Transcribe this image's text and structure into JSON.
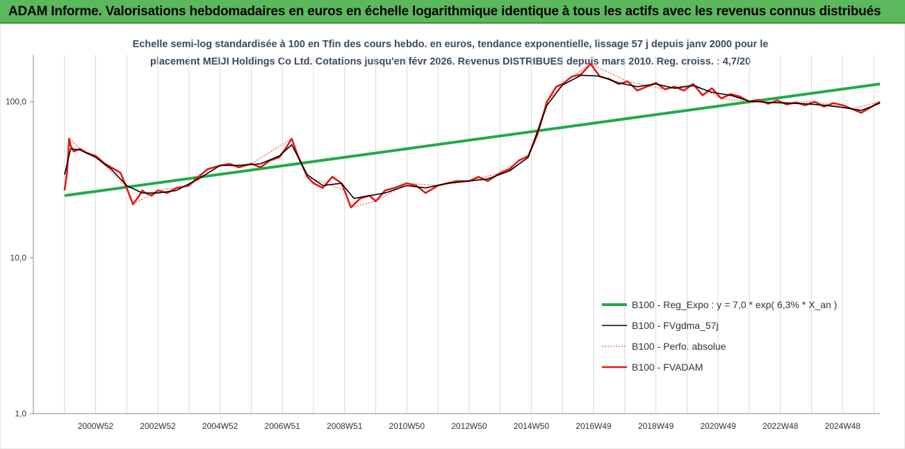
{
  "header": {
    "title": "ADAM Informe. Valorisations hebdomadaires en euros en échelle logarithmique identique à tous les actifs avec les revenus connus distribués"
  },
  "colors": {
    "header_bg": "#5cb85c",
    "reg": "#1faa4a",
    "fvgdma": "#000000",
    "perfo": "#e0301e",
    "fvadam": "#e8150f",
    "grid": "#d9d9d9"
  },
  "chart_data": {
    "type": "line",
    "subtitle_line1": "Echelle semi-log standardisée à 100 en Tfin des cours hebdo. en euros, tendance exponentielle, lissage 57 j depuis janv 2000 pour le",
    "subtitle_line2": "placement MEIJI Holdings Co Ltd. Cotations jusqu'en févr 2026.  Revenus DISTRIBUES depuis mars 2010. Reg. croiss. : 4,7/20",
    "y_scale": "log",
    "ylim": [
      1,
      200
    ],
    "y_ticks": [
      1,
      10,
      100
    ],
    "y_tick_labels": [
      "1,0",
      "10,0",
      "100,0"
    ],
    "xlim": [
      1999.0,
      2026.2
    ],
    "x_tick_labels": [
      "2000W52",
      "2002W52",
      "2004W52",
      "2006W51",
      "2008W51",
      "2010W50",
      "2012W50",
      "2014W50",
      "2016W49",
      "2018W49",
      "2020W49",
      "2022W48",
      "2024W48"
    ],
    "x_tick_years": [
      2001,
      2003,
      2005,
      2007,
      2009,
      2011,
      2013,
      2015,
      2017,
      2019,
      2021,
      2023,
      2025
    ],
    "grid": true,
    "legend_position": "bottom-right",
    "legend": [
      {
        "name": "B100 - Reg_Expo : y = 7,0 * exp( 6,3% *  X_an )",
        "key": "reg",
        "style": "solid-thick"
      },
      {
        "name": "B100 - FVgdma_57j",
        "key": "fvgdma",
        "style": "solid"
      },
      {
        "name": "B100 - Perfo. absolue",
        "key": "perfo",
        "style": "dotted"
      },
      {
        "name": "B100 - FVADAM",
        "key": "fvadam",
        "style": "solid-thick"
      }
    ],
    "series": [
      {
        "name": "B100 - Reg_Expo : y = 7,0 * exp( 6,3% *  X_an )",
        "key": "reg",
        "x": [
          2000.0,
          2026.2
        ],
        "y": [
          25,
          130
        ]
      },
      {
        "name": "B100 - FVADAM",
        "key": "fvadam",
        "x": [
          2000.0,
          2000.08,
          2000.15,
          2000.2,
          2000.3,
          2000.5,
          2000.7,
          2001.0,
          2001.3,
          2001.5,
          2001.8,
          2002.0,
          2002.2,
          2002.4,
          2002.5,
          2002.6,
          2002.8,
          2003.0,
          2003.3,
          2003.6,
          2004.0,
          2004.3,
          2004.6,
          2005.0,
          2005.3,
          2005.6,
          2006.0,
          2006.3,
          2006.6,
          2006.9,
          2007.1,
          2007.3,
          2007.5,
          2007.8,
          2008.0,
          2008.3,
          2008.6,
          2008.9,
          2009.0,
          2009.2,
          2009.5,
          2009.8,
          2010.0,
          2010.3,
          2010.6,
          2011.0,
          2011.3,
          2011.6,
          2012.0,
          2012.3,
          2012.6,
          2013.0,
          2013.3,
          2013.6,
          2014.0,
          2014.3,
          2014.6,
          2014.9,
          2015.2,
          2015.5,
          2015.8,
          2016.0,
          2016.3,
          2016.6,
          2016.9,
          2017.2,
          2017.5,
          2017.8,
          2018.1,
          2018.4,
          2018.7,
          2019.0,
          2019.3,
          2019.6,
          2019.9,
          2020.2,
          2020.5,
          2020.8,
          2021.1,
          2021.4,
          2021.7,
          2022.0,
          2022.3,
          2022.6,
          2022.9,
          2023.2,
          2023.5,
          2023.8,
          2024.1,
          2024.4,
          2024.7,
          2025.0,
          2025.3,
          2025.6,
          2025.9,
          2026.2
        ],
        "y": [
          27,
          35,
          58,
          52,
          48,
          50,
          47,
          45,
          40,
          38,
          35,
          28,
          22,
          25,
          27,
          26,
          25,
          27,
          26,
          28,
          29,
          33,
          37,
          39,
          40,
          38,
          40,
          38,
          42,
          44,
          50,
          58,
          45,
          33,
          30,
          28,
          33,
          30,
          27,
          21,
          24,
          25,
          23,
          27,
          28,
          30,
          29,
          26,
          29,
          30,
          31,
          31,
          33,
          31,
          35,
          37,
          42,
          45,
          62,
          100,
          125,
          130,
          145,
          150,
          175,
          145,
          140,
          130,
          135,
          118,
          125,
          132,
          120,
          125,
          118,
          130,
          110,
          122,
          105,
          112,
          108,
          100,
          103,
          97,
          102,
          96,
          99,
          95,
          100,
          93,
          98,
          95,
          90,
          85,
          92,
          100
        ]
      },
      {
        "name": "B100 - FVgdma_57j",
        "key": "fvgdma",
        "x": [
          2000.0,
          2000.2,
          2000.5,
          2001.0,
          2001.5,
          2002.0,
          2002.5,
          2003.0,
          2003.6,
          2004.3,
          2005.0,
          2005.6,
          2006.3,
          2006.9,
          2007.3,
          2007.8,
          2008.3,
          2008.9,
          2009.3,
          2009.8,
          2010.3,
          2011.0,
          2011.6,
          2012.3,
          2013.0,
          2013.6,
          2014.3,
          2014.9,
          2015.5,
          2016.0,
          2016.6,
          2017.2,
          2017.8,
          2018.4,
          2019.0,
          2019.6,
          2020.2,
          2020.8,
          2021.4,
          2022.0,
          2022.6,
          2023.2,
          2023.8,
          2024.4,
          2025.0,
          2025.6,
          2026.2
        ],
        "y": [
          34,
          50,
          49,
          44,
          37,
          29,
          26,
          26,
          27,
          32,
          39,
          39,
          40,
          45,
          53,
          34,
          29,
          30,
          24,
          25,
          26,
          29,
          28,
          30,
          31,
          32,
          36,
          44,
          95,
          128,
          148,
          146,
          132,
          125,
          130,
          122,
          127,
          115,
          110,
          101,
          99,
          98,
          97,
          95,
          92,
          88,
          98
        ]
      },
      {
        "name": "B100 - Perfo. absolue",
        "key": "perfo",
        "x": [
          2000.0,
          2000.15,
          2000.5,
          2001.0,
          2002.0,
          2002.2,
          2003.0,
          2004.0,
          2005.0,
          2006.0,
          2007.3,
          2007.8,
          2009.0,
          2009.2,
          2010.0,
          2011.0,
          2012.0,
          2013.0,
          2014.0,
          2014.9,
          2015.5,
          2016.0,
          2016.9,
          2018.1,
          2019.3,
          2020.2,
          2021.1,
          2022.0,
          2023.2,
          2024.1,
          2025.3,
          2026.2
        ],
        "y": [
          27,
          58,
          50,
          45,
          28,
          22,
          27,
          29,
          39,
          40,
          58,
          33,
          27,
          21,
          23,
          30,
          29,
          31,
          35,
          45,
          100,
          130,
          175,
          135,
          120,
          130,
          105,
          100,
          99,
          100,
          90,
          100
        ]
      }
    ]
  }
}
